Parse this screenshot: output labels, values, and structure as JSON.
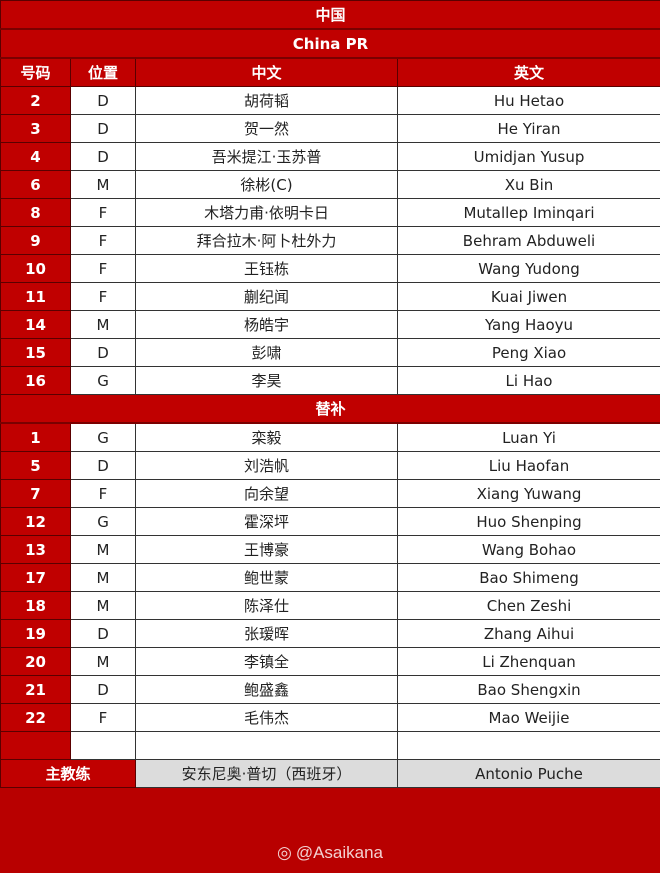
{
  "title_cn": "中国",
  "title_en": "China PR",
  "columns": [
    "号码",
    "位置",
    "中文",
    "英文"
  ],
  "starters": [
    {
      "no": "2",
      "pos": "D",
      "cn": "胡荷韬",
      "en": "Hu Hetao"
    },
    {
      "no": "3",
      "pos": "D",
      "cn": "贺一然",
      "en": "He Yiran"
    },
    {
      "no": "4",
      "pos": "D",
      "cn": "吾米提江·玉苏普",
      "en": "Umidjan Yusup"
    },
    {
      "no": "6",
      "pos": "M",
      "cn": "徐彬(C)",
      "en": "Xu Bin"
    },
    {
      "no": "8",
      "pos": "F",
      "cn": "木塔力甫·依明卡日",
      "en": "Mutallep Iminqari"
    },
    {
      "no": "9",
      "pos": "F",
      "cn": "拜合拉木·阿卜杜外力",
      "en": "Behram Abduweli"
    },
    {
      "no": "10",
      "pos": "F",
      "cn": "王钰栋",
      "en": "Wang Yudong"
    },
    {
      "no": "11",
      "pos": "F",
      "cn": "蒯纪闻",
      "en": "Kuai Jiwen"
    },
    {
      "no": "14",
      "pos": "M",
      "cn": "杨皓宇",
      "en": "Yang Haoyu"
    },
    {
      "no": "15",
      "pos": "D",
      "cn": "彭啸",
      "en": "Peng Xiao"
    },
    {
      "no": "16",
      "pos": "G",
      "cn": "李昊",
      "en": "Li Hao"
    }
  ],
  "subs_label": "替补",
  "subs": [
    {
      "no": "1",
      "pos": "G",
      "cn": "栾毅",
      "en": "Luan Yi"
    },
    {
      "no": "5",
      "pos": "D",
      "cn": "刘浩帆",
      "en": "Liu Haofan"
    },
    {
      "no": "7",
      "pos": "F",
      "cn": "向余望",
      "en": "Xiang Yuwang"
    },
    {
      "no": "12",
      "pos": "G",
      "cn": "霍深坪",
      "en": "Huo Shenping"
    },
    {
      "no": "13",
      "pos": "M",
      "cn": "王博豪",
      "en": "Wang Bohao"
    },
    {
      "no": "17",
      "pos": "M",
      "cn": "鲍世蒙",
      "en": "Bao Shimeng"
    },
    {
      "no": "18",
      "pos": "M",
      "cn": "陈泽仕",
      "en": "Chen Zeshi"
    },
    {
      "no": "19",
      "pos": "D",
      "cn": "张瑷晖",
      "en": "Zhang Aihui"
    },
    {
      "no": "20",
      "pos": "M",
      "cn": "李镇全",
      "en": "Li Zhenquan"
    },
    {
      "no": "21",
      "pos": "D",
      "cn": "鲍盛鑫",
      "en": "Bao Shengxin"
    },
    {
      "no": "22",
      "pos": "F",
      "cn": "毛伟杰",
      "en": "Mao Weijie"
    }
  ],
  "coach": {
    "label": "主教练",
    "cn": "安东尼奥·普切（西班牙）",
    "en": "Antonio Puche"
  },
  "watermark": {
    "icon": "weibo-icon",
    "text": "@Asaikana"
  },
  "colors": {
    "red": "#c00000",
    "white": "#ffffff",
    "coach_bg": "#dcdcdc"
  }
}
